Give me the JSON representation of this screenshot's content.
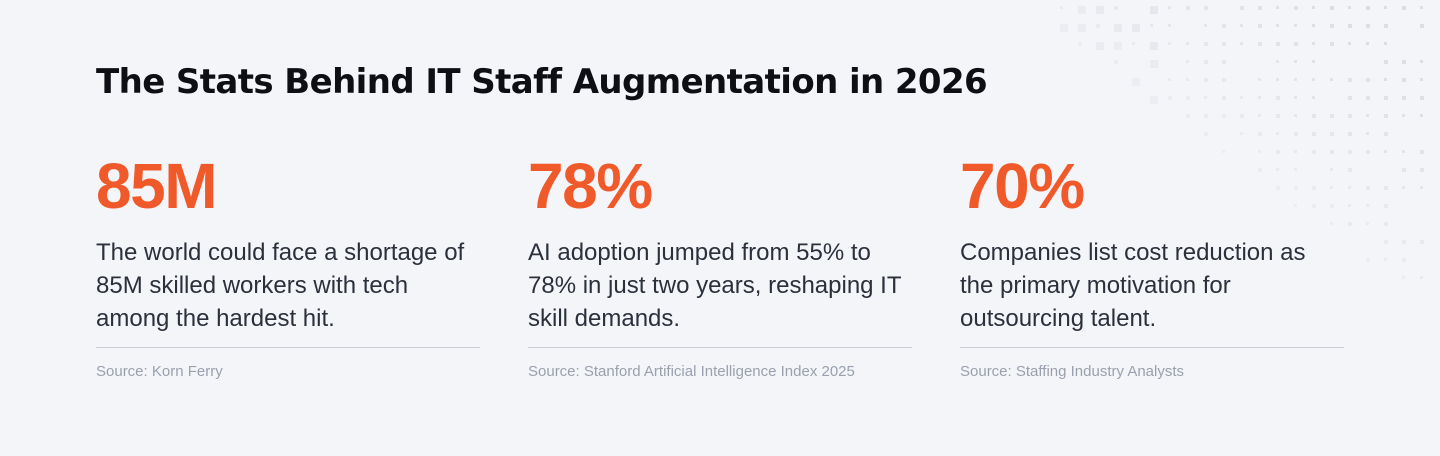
{
  "title": "The Stats Behind IT Staff Augmentation in 2026",
  "accent_color": "#f05a2b",
  "stats": [
    {
      "value": "85M",
      "description": "The world could face a shortage of 85M skilled workers with tech among the hardest hit.",
      "source": "Source: Korn Ferry"
    },
    {
      "value": "78%",
      "description": "AI adoption jumped from 55% to 78% in just two years, reshaping IT skill demands.",
      "source": "Source: Stanford Artificial Intelligence Index 2025"
    },
    {
      "value": "70%",
      "description": "Companies list cost reduction as the primary motivation for outsourcing talent.",
      "source": "Source: Staffing Industry Analysts"
    }
  ]
}
